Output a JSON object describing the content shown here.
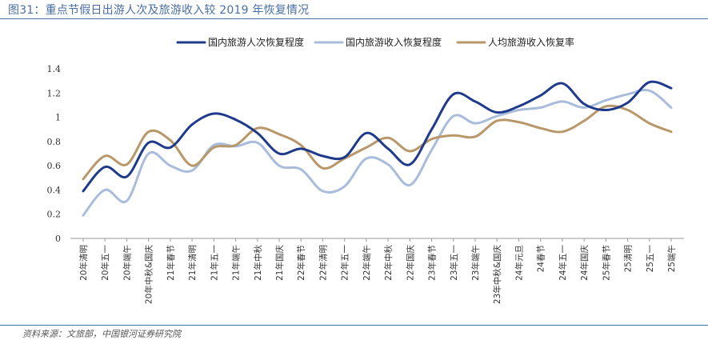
{
  "figure_title": "图31：重点节假日出游人次及旅游收入较 2019 年恢复情况",
  "source_note": "资料来源：文旅部，中国银河证券研究院",
  "chart_data": {
    "type": "line",
    "title": "重点节假日出游人次及旅游收入较 2019 年恢复情况",
    "xlabel": "",
    "ylabel": "",
    "ylim": [
      0,
      1.4
    ],
    "yticks": [
      0,
      0.2,
      0.4,
      0.6,
      0.8,
      1,
      1.2,
      1.4
    ],
    "grid": false,
    "legend_position": "top",
    "categories": [
      "20年清明",
      "20年五一",
      "20年端午",
      "20年中秋&国庆",
      "21年春节",
      "21年清明",
      "21年五一",
      "21年端午",
      "21年中秋",
      "21年国庆",
      "22年春节",
      "22年清明",
      "22年五一",
      "22年端午",
      "22年中秋",
      "22年国庆",
      "23年春节",
      "23年五一",
      "23年端午",
      "23年中秋&国庆",
      "24年元旦",
      "24春节",
      "24年五一",
      "24年国庆",
      "25年春节",
      "25清明",
      "25五一",
      "25端午"
    ],
    "series": [
      {
        "name": "国内旅游人次恢复程度",
        "color": "#1f3a8a",
        "width": 3,
        "values": [
          0.39,
          0.59,
          0.51,
          0.79,
          0.75,
          0.94,
          1.03,
          0.98,
          0.87,
          0.7,
          0.74,
          0.68,
          0.67,
          0.87,
          0.74,
          0.61,
          0.9,
          1.19,
          1.13,
          1.04,
          1.09,
          1.18,
          1.28,
          1.11,
          1.06,
          1.12,
          1.29,
          1.24
        ]
      },
      {
        "name": "国内旅游收入恢复程度",
        "color": "#a9bcdc",
        "width": 3,
        "values": [
          0.19,
          0.4,
          0.31,
          0.7,
          0.6,
          0.56,
          0.77,
          0.76,
          0.79,
          0.6,
          0.57,
          0.39,
          0.43,
          0.66,
          0.61,
          0.44,
          0.73,
          1.01,
          0.95,
          1.01,
          1.06,
          1.08,
          1.13,
          1.08,
          1.14,
          1.19,
          1.22,
          1.08
        ]
      },
      {
        "name": "人均旅游收入恢复率",
        "color": "#b8976a",
        "width": 3,
        "values": [
          0.49,
          0.68,
          0.61,
          0.88,
          0.81,
          0.6,
          0.75,
          0.77,
          0.91,
          0.86,
          0.77,
          0.58,
          0.66,
          0.75,
          0.83,
          0.72,
          0.82,
          0.85,
          0.84,
          0.97,
          0.96,
          0.91,
          0.88,
          0.97,
          1.09,
          1.06,
          0.95,
          0.88
        ]
      }
    ]
  }
}
